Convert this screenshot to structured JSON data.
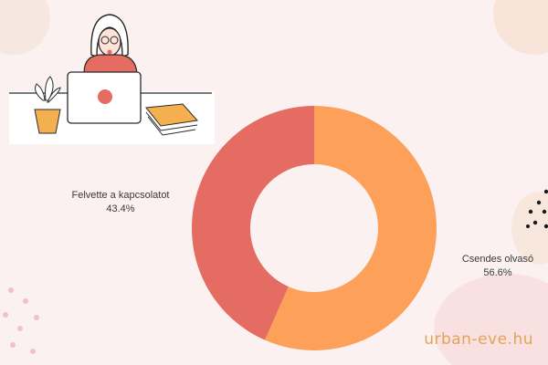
{
  "chart_data": {
    "type": "pie",
    "donut": true,
    "slices": [
      {
        "label": "Csendes olvasó",
        "value": 56.6,
        "value_label": "56.6%",
        "color": "#fda15a"
      },
      {
        "label": "Felvette a kapcsolatot",
        "value": 43.4,
        "value_label": "43.4%",
        "color": "#e56c62"
      }
    ],
    "title": ""
  },
  "branding": {
    "site": "urban-eve.hu",
    "color": "#e2a35a"
  },
  "decor": {
    "illustration": "woman-at-laptop-illustration",
    "icons": [
      "plant-icon",
      "laptop-icon",
      "books-icon",
      "dots-pattern-icon"
    ]
  }
}
